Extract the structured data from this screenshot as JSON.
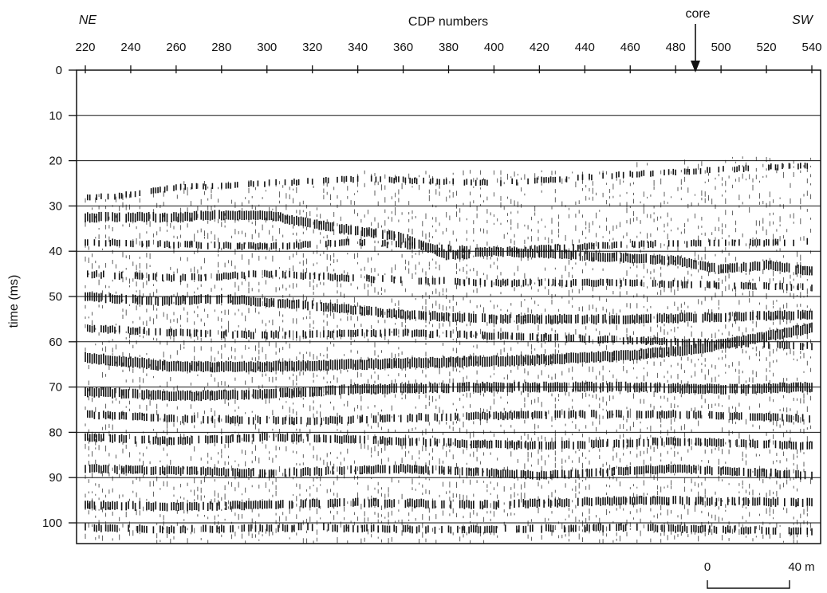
{
  "figure": {
    "type": "seismic-section",
    "x_axis": {
      "title": "CDP numbers",
      "ticks": [
        "220",
        "240",
        "260",
        "280",
        "300",
        "320",
        "340",
        "360",
        "380",
        "400",
        "420",
        "440",
        "460",
        "480",
        "500",
        "520",
        "540"
      ],
      "range": [
        220,
        540
      ]
    },
    "y_axis": {
      "title": "time (ms)",
      "ticks": [
        "0",
        "10",
        "20",
        "30",
        "40",
        "50",
        "60",
        "70",
        "80",
        "90",
        "100"
      ],
      "range": [
        0,
        105
      ]
    },
    "direction_left": "NE",
    "direction_right": "SW",
    "core": {
      "label": "core",
      "cdp": 490
    },
    "scale_bar": {
      "start_label": "0",
      "end_label": "40 m"
    },
    "colors": {
      "ink": "#111111",
      "paper": "#ffffff"
    },
    "reflectors": [
      {
        "strength": 1.0,
        "points": [
          [
            220,
            63.5
          ],
          [
            260,
            65.5
          ],
          [
            300,
            65.5
          ],
          [
            340,
            65
          ],
          [
            380,
            64.5
          ],
          [
            420,
            64
          ],
          [
            460,
            63
          ],
          [
            490,
            61.5
          ],
          [
            540,
            57
          ]
        ]
      },
      {
        "strength": 0.9,
        "points": [
          [
            220,
            71
          ],
          [
            260,
            72
          ],
          [
            300,
            71.5
          ],
          [
            340,
            70.5
          ],
          [
            400,
            70
          ],
          [
            460,
            70
          ],
          [
            500,
            70.5
          ],
          [
            540,
            70
          ]
        ]
      },
      {
        "strength": 0.8,
        "points": [
          [
            220,
            50
          ],
          [
            250,
            51
          ],
          [
            280,
            50.5
          ],
          [
            320,
            52
          ],
          [
            360,
            54
          ],
          [
            400,
            55
          ],
          [
            460,
            55
          ],
          [
            540,
            54
          ]
        ]
      },
      {
        "strength": 0.85,
        "points": [
          [
            260,
            32.5
          ],
          [
            280,
            32
          ],
          [
            300,
            32
          ],
          [
            320,
            34
          ],
          [
            360,
            37
          ],
          [
            380,
            41
          ],
          [
            400,
            40
          ],
          [
            440,
            41
          ],
          [
            480,
            42
          ],
          [
            500,
            44
          ],
          [
            520,
            43
          ],
          [
            540,
            44.5
          ]
        ]
      },
      {
        "strength": 0.7,
        "points": [
          [
            220,
            96
          ],
          [
            260,
            96.5
          ],
          [
            300,
            96
          ],
          [
            340,
            95.5
          ],
          [
            400,
            96
          ],
          [
            460,
            95
          ],
          [
            540,
            95.5
          ]
        ]
      },
      {
        "strength": 0.7,
        "points": [
          [
            220,
            88
          ],
          [
            260,
            88.5
          ],
          [
            300,
            89
          ],
          [
            360,
            88
          ],
          [
            420,
            89.5
          ],
          [
            480,
            88
          ],
          [
            540,
            89.5
          ]
        ]
      },
      {
        "strength": 0.65,
        "points": [
          [
            220,
            81
          ],
          [
            260,
            82
          ],
          [
            300,
            81
          ],
          [
            360,
            82
          ],
          [
            420,
            83
          ],
          [
            480,
            82
          ],
          [
            540,
            83
          ]
        ]
      },
      {
        "strength": 0.6,
        "points": [
          [
            220,
            76
          ],
          [
            260,
            77
          ],
          [
            320,
            77.5
          ],
          [
            380,
            76.5
          ],
          [
            440,
            76
          ],
          [
            480,
            76
          ],
          [
            540,
            77
          ]
        ]
      },
      {
        "strength": 0.55,
        "points": [
          [
            220,
            57
          ],
          [
            260,
            58
          ],
          [
            300,
            58.5
          ],
          [
            360,
            58
          ],
          [
            420,
            59
          ],
          [
            480,
            60
          ],
          [
            540,
            61
          ]
        ]
      },
      {
        "strength": 0.5,
        "points": [
          [
            220,
            45
          ],
          [
            260,
            46
          ],
          [
            300,
            45
          ],
          [
            340,
            46
          ],
          [
            400,
            47
          ],
          [
            460,
            47
          ],
          [
            540,
            48
          ]
        ]
      },
      {
        "strength": 0.45,
        "points": [
          [
            220,
            38
          ],
          [
            260,
            38.5
          ],
          [
            300,
            39
          ],
          [
            340,
            38
          ],
          [
            400,
            40
          ],
          [
            460,
            38.5
          ],
          [
            540,
            38
          ]
        ]
      },
      {
        "strength": 0.35,
        "points": [
          [
            230,
            28
          ],
          [
            260,
            26
          ],
          [
            300,
            25
          ],
          [
            340,
            24
          ],
          [
            400,
            25
          ],
          [
            460,
            23
          ],
          [
            500,
            22
          ],
          [
            540,
            21
          ]
        ]
      },
      {
        "strength": 0.55,
        "points": [
          [
            220,
            101
          ],
          [
            260,
            101.5
          ],
          [
            320,
            101
          ],
          [
            380,
            101.5
          ],
          [
            460,
            101
          ],
          [
            540,
            102
          ]
        ]
      }
    ]
  }
}
